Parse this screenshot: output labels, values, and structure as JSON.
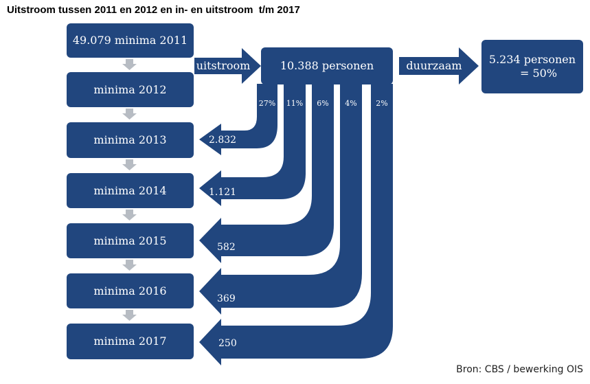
{
  "title": "Uitstroom tussen 2011 en 2012 en in- en uitstroom  t/m 2017",
  "source": "Bron: CBS / bewerking OIS",
  "colors": {
    "box": "#21467e",
    "arrow_gray": "#b7bcc3",
    "text": "#ffffff"
  },
  "boxes": {
    "minima_2011": "49.079 minima 2011",
    "minima_2012": "minima 2012",
    "minima_2013": "minima 2013",
    "minima_2014": "minima 2014",
    "minima_2015": "minima 2015",
    "minima_2016": "minima 2016",
    "minima_2017": "minima 2017",
    "personen": "10.388 personen",
    "duurzaam_line1": "5.234 personen",
    "duurzaam_line2": "= 50%"
  },
  "arrows": {
    "uitstroom": "uitstroom",
    "duurzaam": "duurzaam"
  },
  "return_flows": [
    {
      "pct": "27%",
      "value": "2.832"
    },
    {
      "pct": "11%",
      "value": "1.121"
    },
    {
      "pct": "6%",
      "value": "582"
    },
    {
      "pct": "4%",
      "value": "369"
    },
    {
      "pct": "2%",
      "value": "250"
    }
  ]
}
